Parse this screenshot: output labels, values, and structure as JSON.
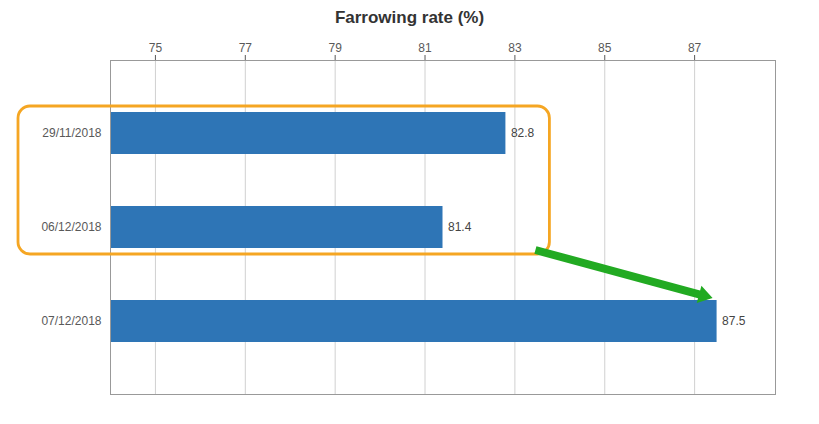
{
  "chart_data": {
    "type": "bar",
    "orientation": "horizontal",
    "title": "Farrowing rate (%)",
    "categories": [
      "07/12/2018",
      "06/12/2018",
      "29/11/2018"
    ],
    "values": [
      87.5,
      81.4,
      82.8
    ],
    "color": "#2E75B6",
    "xlim": [
      74,
      88.8
    ],
    "xticks": [
      75,
      77,
      79,
      81,
      83,
      85,
      87
    ],
    "grid": true,
    "data_labels": true
  }
}
